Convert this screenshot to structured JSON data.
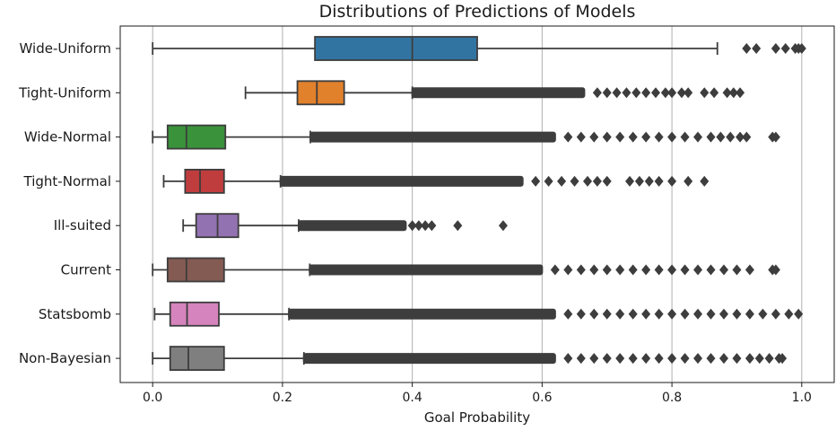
{
  "chart_data": {
    "type": "boxplot",
    "orientation": "horizontal",
    "title": "Distributions of Predictions of Models",
    "xlabel": "Goal Probability",
    "ylabel": "",
    "xlim": [
      -0.05,
      1.05
    ],
    "xticks": [
      0.0,
      0.2,
      0.4,
      0.6,
      0.8,
      1.0
    ],
    "xtick_labels": [
      "0.0",
      "0.2",
      "0.4",
      "0.6",
      "0.8",
      "1.0"
    ],
    "grid": "vertical",
    "series": [
      {
        "name": "Wide-Uniform",
        "color": "#3274a1",
        "whisker_low": 0.0,
        "q1": 0.25,
        "median": 0.4,
        "q3": 0.5,
        "whisker_high": 0.87,
        "outliers": [
          0.915,
          0.93,
          0.96,
          0.975,
          0.99,
          0.995,
          1.0
        ]
      },
      {
        "name": "Tight-Uniform",
        "color": "#e1812c",
        "whisker_low": 0.143,
        "q1": 0.223,
        "median": 0.253,
        "q3": 0.295,
        "whisker_high": 0.4,
        "outliers_band": [
          0.4,
          0.665
        ],
        "outliers": [
          0.685,
          0.7,
          0.715,
          0.73,
          0.745,
          0.76,
          0.775,
          0.79,
          0.8,
          0.815,
          0.825,
          0.85,
          0.865,
          0.885,
          0.895,
          0.905
        ]
      },
      {
        "name": "Wide-Normal",
        "color": "#3a923a",
        "whisker_low": 0.0,
        "q1": 0.023,
        "median": 0.052,
        "q3": 0.112,
        "whisker_high": 0.243,
        "outliers_band": [
          0.243,
          0.62
        ],
        "outliers": [
          0.64,
          0.66,
          0.68,
          0.7,
          0.72,
          0.74,
          0.76,
          0.78,
          0.8,
          0.82,
          0.84,
          0.86,
          0.875,
          0.89,
          0.905,
          0.915,
          0.955,
          0.96
        ]
      },
      {
        "name": "Tight-Normal",
        "color": "#c03d3e",
        "whisker_low": 0.017,
        "q1": 0.05,
        "median": 0.073,
        "q3": 0.11,
        "whisker_high": 0.197,
        "outliers_band": [
          0.197,
          0.57
        ],
        "outliers": [
          0.59,
          0.61,
          0.63,
          0.65,
          0.67,
          0.685,
          0.7,
          0.735,
          0.75,
          0.765,
          0.78,
          0.8,
          0.825,
          0.85
        ]
      },
      {
        "name": "Ill-suited",
        "color": "#9372b2",
        "whisker_low": 0.047,
        "q1": 0.067,
        "median": 0.1,
        "q3": 0.132,
        "whisker_high": 0.225,
        "outliers_band": [
          0.225,
          0.39
        ],
        "outliers": [
          0.4,
          0.41,
          0.42,
          0.43,
          0.47,
          0.54
        ]
      },
      {
        "name": "Current",
        "color": "#845b53",
        "whisker_low": 0.0,
        "q1": 0.023,
        "median": 0.052,
        "q3": 0.11,
        "whisker_high": 0.242,
        "outliers_band": [
          0.242,
          0.6
        ],
        "outliers": [
          0.62,
          0.64,
          0.66,
          0.68,
          0.7,
          0.72,
          0.74,
          0.76,
          0.78,
          0.8,
          0.82,
          0.84,
          0.86,
          0.88,
          0.9,
          0.92,
          0.955,
          0.96
        ]
      },
      {
        "name": "Statsbomb",
        "color": "#d684bd",
        "whisker_low": 0.003,
        "q1": 0.027,
        "median": 0.053,
        "q3": 0.102,
        "whisker_high": 0.21,
        "outliers_band": [
          0.21,
          0.62
        ],
        "outliers": [
          0.64,
          0.66,
          0.68,
          0.7,
          0.72,
          0.74,
          0.76,
          0.78,
          0.8,
          0.82,
          0.84,
          0.86,
          0.88,
          0.9,
          0.92,
          0.94,
          0.96,
          0.98,
          0.995
        ]
      },
      {
        "name": "Non-Bayesian",
        "color": "#7f7f7f",
        "whisker_low": 0.0,
        "q1": 0.027,
        "median": 0.055,
        "q3": 0.11,
        "whisker_high": 0.233,
        "outliers_band": [
          0.233,
          0.62
        ],
        "outliers": [
          0.64,
          0.66,
          0.68,
          0.7,
          0.72,
          0.74,
          0.76,
          0.78,
          0.8,
          0.82,
          0.84,
          0.86,
          0.88,
          0.9,
          0.92,
          0.935,
          0.95,
          0.965,
          0.97
        ]
      }
    ]
  }
}
